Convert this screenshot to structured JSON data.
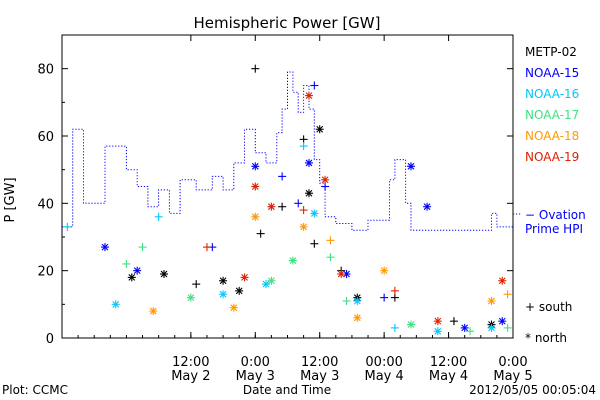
{
  "chart_data": {
    "type": "scatter",
    "title": "Hemispheric Power [GW]",
    "ylabel": "P [GW]",
    "xlabel": "Date and Time",
    "ylim": [
      0,
      90
    ],
    "y_ticks": [
      0,
      20,
      40,
      60,
      80
    ],
    "xlim": [
      "2012-05-01T12:00",
      "2012-05-05T00:00"
    ],
    "x_ticks": [
      {
        "time": "2012-05-02T12:00",
        "line1": "12:00",
        "line2": "May 2"
      },
      {
        "time": "2012-05-03T00:00",
        "line1": "0:00",
        "line2": "May 3"
      },
      {
        "time": "2012-05-03T12:00",
        "line1": "12:00",
        "line2": "May 3"
      },
      {
        "time": "2012-05-04T00:00",
        "line1": "00:00",
        "line2": "May 4"
      },
      {
        "time": "2012-05-04T12:00",
        "line1": "12:00",
        "line2": "May 4"
      },
      {
        "time": "2012-05-05T00:00",
        "line1": "0:00",
        "line2": "May 5"
      }
    ],
    "legend_placement": "right",
    "series": [
      {
        "name": "METP-02",
        "color": "#000000",
        "points": [
          {
            "x": "2012-05-02T01:00",
            "y": 18,
            "m": "star"
          },
          {
            "x": "2012-05-02T07:00",
            "y": 19,
            "m": "star"
          },
          {
            "x": "2012-05-02T13:00",
            "y": 16,
            "m": "plus"
          },
          {
            "x": "2012-05-02T18:00",
            "y": 17,
            "m": "star"
          },
          {
            "x": "2012-05-02T21:00",
            "y": 14,
            "m": "star"
          },
          {
            "x": "2012-05-03T00:00",
            "y": 80,
            "m": "plus"
          },
          {
            "x": "2012-05-03T01:00",
            "y": 31,
            "m": "plus"
          },
          {
            "x": "2012-05-03T05:00",
            "y": 39,
            "m": "plus"
          },
          {
            "x": "2012-05-03T09:00",
            "y": 59,
            "m": "plus"
          },
          {
            "x": "2012-05-03T10:00",
            "y": 43,
            "m": "star"
          },
          {
            "x": "2012-05-03T12:00",
            "y": 62,
            "m": "star"
          },
          {
            "x": "2012-05-03T11:00",
            "y": 28,
            "m": "plus"
          },
          {
            "x": "2012-05-03T16:00",
            "y": 20,
            "m": "plus"
          },
          {
            "x": "2012-05-03T19:00",
            "y": 12,
            "m": "star"
          },
          {
            "x": "2012-05-04T02:00",
            "y": 12,
            "m": "plus"
          },
          {
            "x": "2012-05-04T13:00",
            "y": 5,
            "m": "plus"
          },
          {
            "x": "2012-05-04T20:00",
            "y": 4,
            "m": "star"
          }
        ]
      },
      {
        "name": "NOAA-15",
        "color": "#0000ff",
        "points": [
          {
            "x": "2012-05-01T20:00",
            "y": 27,
            "m": "star"
          },
          {
            "x": "2012-05-02T02:00",
            "y": 20,
            "m": "star"
          },
          {
            "x": "2012-05-02T16:00",
            "y": 27,
            "m": "plus"
          },
          {
            "x": "2012-05-03T00:00",
            "y": 51,
            "m": "star"
          },
          {
            "x": "2012-05-03T05:00",
            "y": 48,
            "m": "plus"
          },
          {
            "x": "2012-05-03T08:00",
            "y": 40,
            "m": "plus"
          },
          {
            "x": "2012-05-03T10:00",
            "y": 52,
            "m": "star"
          },
          {
            "x": "2012-05-03T11:00",
            "y": 75,
            "m": "plus"
          },
          {
            "x": "2012-05-03T13:00",
            "y": 45,
            "m": "plus"
          },
          {
            "x": "2012-05-03T17:00",
            "y": 19,
            "m": "star"
          },
          {
            "x": "2012-05-04T00:00",
            "y": 12,
            "m": "plus"
          },
          {
            "x": "2012-05-04T05:00",
            "y": 51,
            "m": "star"
          },
          {
            "x": "2012-05-04T08:00",
            "y": 39,
            "m": "star"
          },
          {
            "x": "2012-05-04T15:00",
            "y": 3,
            "m": "star"
          },
          {
            "x": "2012-05-04T22:00",
            "y": 5,
            "m": "star"
          }
        ]
      },
      {
        "name": "NOAA-16",
        "color": "#00c8ff",
        "points": [
          {
            "x": "2012-05-01T13:00",
            "y": 33,
            "m": "plus"
          },
          {
            "x": "2012-05-01T22:00",
            "y": 10,
            "m": "star"
          },
          {
            "x": "2012-05-02T06:00",
            "y": 36,
            "m": "plus"
          },
          {
            "x": "2012-05-02T18:00",
            "y": 13,
            "m": "star"
          },
          {
            "x": "2012-05-03T02:00",
            "y": 16,
            "m": "star"
          },
          {
            "x": "2012-05-03T09:00",
            "y": 57,
            "m": "plus"
          },
          {
            "x": "2012-05-03T11:00",
            "y": 37,
            "m": "star"
          },
          {
            "x": "2012-05-03T19:00",
            "y": 11,
            "m": "star"
          },
          {
            "x": "2012-05-04T02:00",
            "y": 3,
            "m": "plus"
          },
          {
            "x": "2012-05-04T10:00",
            "y": 2,
            "m": "star"
          },
          {
            "x": "2012-05-04T20:00",
            "y": 3,
            "m": "star"
          }
        ]
      },
      {
        "name": "NOAA-17",
        "color": "#40e080",
        "points": [
          {
            "x": "2012-05-02T00:00",
            "y": 22,
            "m": "plus"
          },
          {
            "x": "2012-05-02T03:00",
            "y": 27,
            "m": "plus"
          },
          {
            "x": "2012-05-02T12:00",
            "y": 12,
            "m": "star"
          },
          {
            "x": "2012-05-03T03:00",
            "y": 17,
            "m": "star"
          },
          {
            "x": "2012-05-03T07:00",
            "y": 23,
            "m": "star"
          },
          {
            "x": "2012-05-03T14:00",
            "y": 24,
            "m": "plus"
          },
          {
            "x": "2012-05-03T17:00",
            "y": 11,
            "m": "plus"
          },
          {
            "x": "2012-05-04T05:00",
            "y": 4,
            "m": "star"
          },
          {
            "x": "2012-05-04T16:00",
            "y": 2,
            "m": "plus"
          },
          {
            "x": "2012-05-04T23:00",
            "y": 3,
            "m": "plus"
          }
        ]
      },
      {
        "name": "NOAA-18",
        "color": "#ff9900",
        "points": [
          {
            "x": "2012-05-02T05:00",
            "y": 8,
            "m": "star"
          },
          {
            "x": "2012-05-02T20:00",
            "y": 9,
            "m": "star"
          },
          {
            "x": "2012-05-03T00:00",
            "y": 36,
            "m": "star"
          },
          {
            "x": "2012-05-03T09:00",
            "y": 33,
            "m": "star"
          },
          {
            "x": "2012-05-03T14:00",
            "y": 29,
            "m": "plus"
          },
          {
            "x": "2012-05-03T19:00",
            "y": 6,
            "m": "star"
          },
          {
            "x": "2012-05-04T00:00",
            "y": 20,
            "m": "star"
          },
          {
            "x": "2012-05-04T20:00",
            "y": 11,
            "m": "star"
          },
          {
            "x": "2012-05-04T23:00",
            "y": 13,
            "m": "plus"
          }
        ]
      },
      {
        "name": "NOAA-19",
        "color": "#e02000",
        "points": [
          {
            "x": "2012-05-02T15:00",
            "y": 27,
            "m": "plus"
          },
          {
            "x": "2012-05-02T22:00",
            "y": 18,
            "m": "star"
          },
          {
            "x": "2012-05-03T00:00",
            "y": 45,
            "m": "star"
          },
          {
            "x": "2012-05-03T03:00",
            "y": 39,
            "m": "star"
          },
          {
            "x": "2012-05-03T09:00",
            "y": 38,
            "m": "plus"
          },
          {
            "x": "2012-05-03T10:00",
            "y": 72,
            "m": "star"
          },
          {
            "x": "2012-05-03T13:00",
            "y": 47,
            "m": "star"
          },
          {
            "x": "2012-05-03T16:00",
            "y": 19,
            "m": "star"
          },
          {
            "x": "2012-05-04T02:00",
            "y": 14,
            "m": "plus"
          },
          {
            "x": "2012-05-04T10:00",
            "y": 5,
            "m": "star"
          },
          {
            "x": "2012-05-04T22:00",
            "y": 17,
            "m": "star"
          }
        ]
      }
    ],
    "model_series": {
      "name": "Ovation Prime HPI",
      "legend_lines": [
        "− Ovation",
        "Prime HPI"
      ],
      "color": "#0000ff",
      "style": "dotted step",
      "points": [
        {
          "x": "2012-05-01T12:00",
          "y": 33
        },
        {
          "x": "2012-05-01T14:00",
          "y": 62
        },
        {
          "x": "2012-05-01T16:00",
          "y": 40
        },
        {
          "x": "2012-05-01T20:00",
          "y": 57
        },
        {
          "x": "2012-05-02T00:00",
          "y": 50
        },
        {
          "x": "2012-05-02T02:00",
          "y": 45
        },
        {
          "x": "2012-05-02T04:00",
          "y": 39
        },
        {
          "x": "2012-05-02T06:00",
          "y": 44
        },
        {
          "x": "2012-05-02T08:00",
          "y": 37
        },
        {
          "x": "2012-05-02T10:00",
          "y": 47
        },
        {
          "x": "2012-05-02T13:00",
          "y": 44
        },
        {
          "x": "2012-05-02T16:00",
          "y": 48
        },
        {
          "x": "2012-05-02T18:00",
          "y": 44
        },
        {
          "x": "2012-05-02T20:00",
          "y": 52
        },
        {
          "x": "2012-05-02T22:00",
          "y": 62
        },
        {
          "x": "2012-05-03T00:00",
          "y": 55
        },
        {
          "x": "2012-05-03T02:00",
          "y": 52
        },
        {
          "x": "2012-05-03T04:00",
          "y": 61
        },
        {
          "x": "2012-05-03T05:00",
          "y": 68
        },
        {
          "x": "2012-05-03T06:00",
          "y": 79
        },
        {
          "x": "2012-05-03T07:00",
          "y": 73
        },
        {
          "x": "2012-05-03T08:00",
          "y": 67
        },
        {
          "x": "2012-05-03T09:00",
          "y": 75
        },
        {
          "x": "2012-05-03T10:00",
          "y": 68
        },
        {
          "x": "2012-05-03T11:00",
          "y": 53
        },
        {
          "x": "2012-05-03T12:00",
          "y": 46
        },
        {
          "x": "2012-05-03T13:00",
          "y": 36
        },
        {
          "x": "2012-05-03T15:00",
          "y": 34
        },
        {
          "x": "2012-05-03T18:00",
          "y": 32
        },
        {
          "x": "2012-05-03T21:00",
          "y": 35
        },
        {
          "x": "2012-05-04T01:00",
          "y": 47
        },
        {
          "x": "2012-05-04T02:00",
          "y": 53
        },
        {
          "x": "2012-05-04T04:00",
          "y": 40
        },
        {
          "x": "2012-05-04T05:00",
          "y": 32
        },
        {
          "x": "2012-05-04T20:00",
          "y": 37
        },
        {
          "x": "2012-05-04T21:00",
          "y": 33
        },
        {
          "x": "2012-05-05T00:00",
          "y": 33
        }
      ]
    },
    "marker_key": [
      {
        "symbol": "+",
        "label": "south"
      },
      {
        "symbol": "*",
        "label": "north"
      }
    ]
  },
  "footer": {
    "plot_credit": "Plot: CCMC",
    "timestamp": "2012/05/05 00:05:04"
  }
}
